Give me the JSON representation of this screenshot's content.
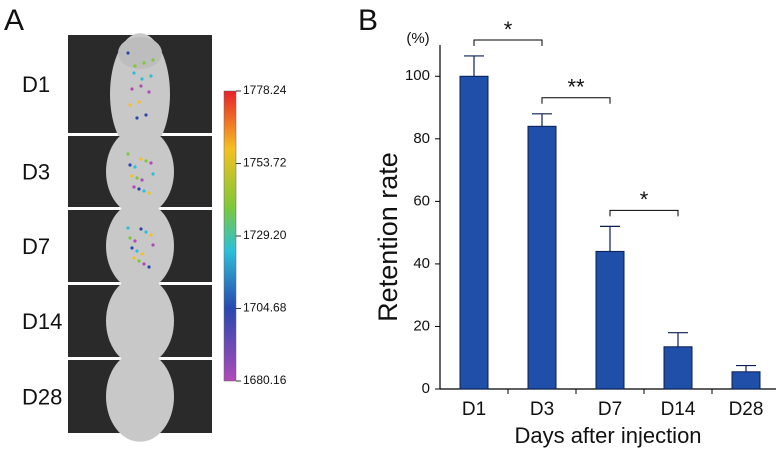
{
  "figure": {
    "panel_labels": [
      "A",
      "B"
    ]
  },
  "image_panel": {
    "rows": [
      "D1",
      "D3",
      "D7",
      "D14",
      "D28"
    ],
    "colorbar_ticks": [
      1778.24,
      1753.72,
      {
        "value": 1729.2,
        "label": "1729.20"
      },
      1704.68,
      1680.16
    ]
  },
  "chart_data": {
    "type": "bar",
    "y_label": "Retention rate",
    "y_unit": "(%)",
    "x_label": "Days after injection",
    "categories": [
      "D1",
      "D3",
      "D7",
      "D14",
      "D28"
    ],
    "values": [
      100,
      84,
      44,
      13.5,
      5.5
    ],
    "errors": [
      6.5,
      4,
      8,
      4.5,
      2
    ],
    "color": "#1f4fa8",
    "ylim": [
      0,
      110
    ],
    "yticks": [
      0,
      20,
      40,
      60,
      80,
      100
    ],
    "annotations": [
      {
        "text": "*",
        "from": "D1",
        "to": "D3"
      },
      {
        "text": "**",
        "from": "D3",
        "to": "D7"
      },
      {
        "text": "*",
        "from": "D7",
        "to": "D14"
      }
    ]
  }
}
